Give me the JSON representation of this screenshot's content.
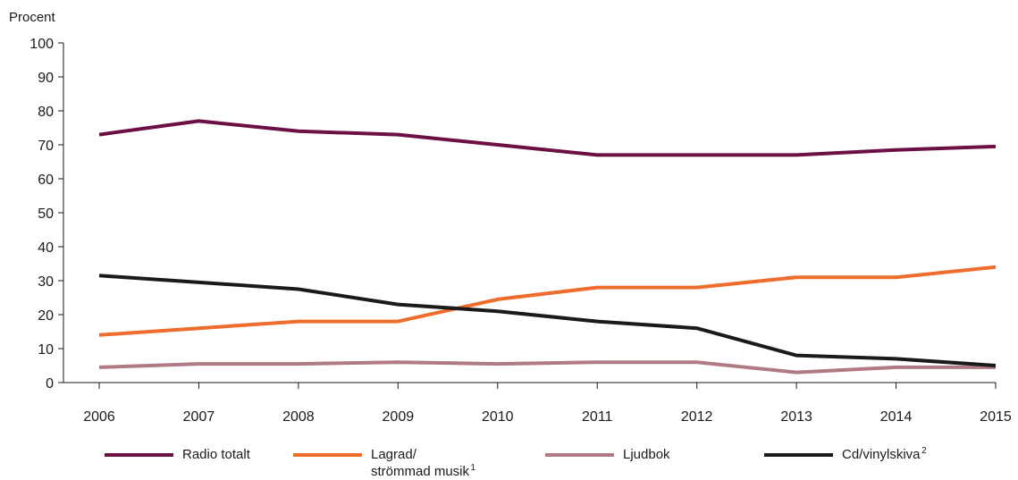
{
  "chart_data": {
    "type": "line",
    "ylabel": "Procent",
    "xlabel": "",
    "ylim": [
      0,
      100
    ],
    "yticks": [
      0,
      10,
      20,
      30,
      40,
      50,
      60,
      70,
      80,
      90,
      100
    ],
    "categories": [
      "2006",
      "2007",
      "2008",
      "2009",
      "2010",
      "2011",
      "2012",
      "2013",
      "2014",
      "2015"
    ],
    "grid": false,
    "legend_position": "bottom",
    "series": [
      {
        "name": "Radio totalt",
        "label_lines": [
          "Radio totalt"
        ],
        "sup": "",
        "color": "#6b0f45",
        "values": [
          73,
          77,
          74,
          73,
          70,
          67,
          67,
          67,
          68.5,
          69.5
        ]
      },
      {
        "name": "Lagrad/ strömmad musik",
        "label_lines": [
          "Lagrad/",
          "strömmad musik"
        ],
        "sup": "1",
        "color": "#ee6c2c",
        "values": [
          14,
          16,
          18,
          18,
          24.5,
          28,
          28,
          31,
          31,
          34
        ]
      },
      {
        "name": "Ljudbok",
        "label_lines": [
          "Ljudbok"
        ],
        "sup": "",
        "color": "#b07a84",
        "values": [
          4.5,
          5.5,
          5.5,
          6,
          5.5,
          6,
          6,
          3,
          4.5,
          4.5
        ]
      },
      {
        "name": "Cd/vinylskiva",
        "label_lines": [
          "Cd/vinylskiva"
        ],
        "sup": "2",
        "color": "#1a1a1a",
        "values": [
          31.5,
          29.5,
          27.5,
          23,
          21,
          18,
          16,
          8,
          7,
          5
        ]
      }
    ]
  }
}
